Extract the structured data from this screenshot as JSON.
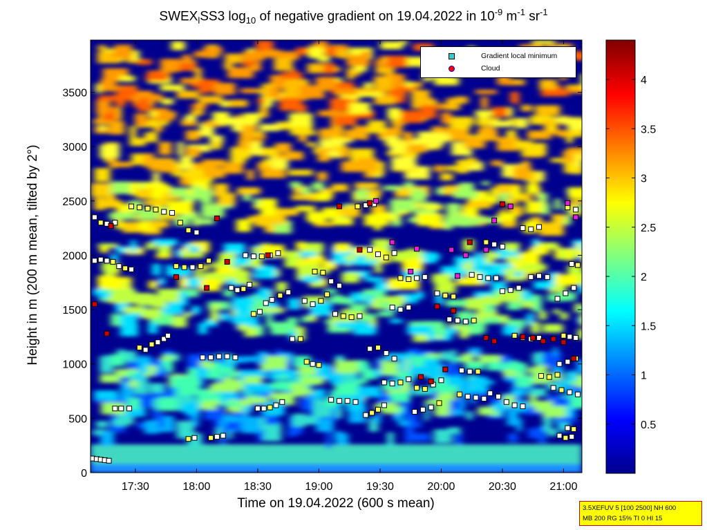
{
  "title": {
    "prefix": "SWEX",
    "sub1": "l",
    "mid": "SS3 log",
    "sub2": "10",
    "rest": " of negative gradient on 19.04.2022 in 10",
    "sup1": "-9",
    "unit1": " m",
    "sup2": "-1",
    "unit2": " sr",
    "sup3": "-1"
  },
  "xlabel": "Time on 19.04.2022 (600 s mean)",
  "ylabel": "Height in m (200 m mean, tilted by 2°)",
  "legend": {
    "items": [
      {
        "label": "Gradient local minimum",
        "color": "#33cccc"
      },
      {
        "label": "Cloud",
        "color": "#ff0000"
      }
    ]
  },
  "infobox": {
    "line1": "3.5XEFUV 5 [100 2500] NH 600",
    "line2": "MB 200 RG 15% TI 0 HI 15"
  },
  "chart_data": {
    "type": "heatmap",
    "x_tick_labels": [
      "17:30",
      "18:00",
      "18:30",
      "19:00",
      "19:30",
      "20:00",
      "20:30",
      "21:00"
    ],
    "x_tick_minutes": [
      1050,
      1080,
      1110,
      1140,
      1170,
      1200,
      1230,
      1260
    ],
    "xlim_minutes": [
      1028,
      1269
    ],
    "y_ticks": [
      0,
      500,
      1000,
      1500,
      2000,
      2500,
      3000,
      3500
    ],
    "ylim": [
      0,
      3980
    ],
    "colorbar": {
      "ticks": [
        0.5,
        1,
        1.5,
        2,
        2.5,
        3,
        3.5,
        4
      ],
      "tick_labels": [
        "0.5",
        "1",
        "1.5",
        "2",
        "2.5",
        "3",
        "3.5",
        "4"
      ],
      "range": [
        0,
        4.4
      ],
      "colormap": "jet"
    },
    "layers": [
      {
        "name": "layer-surface",
        "height": 130
      },
      {
        "name": "layer-600",
        "height": 600
      },
      {
        "name": "layer-1050",
        "height": 1050
      },
      {
        "name": "layer-1500",
        "height": 1500
      },
      {
        "name": "layer-1850",
        "height": 1850
      },
      {
        "name": "layer-2400",
        "height": 2400
      }
    ],
    "markers": [
      {
        "series": "minimum",
        "points": [
          [
            1029,
            130
          ],
          [
            1031,
            125
          ],
          [
            1033,
            120
          ],
          [
            1035,
            115
          ],
          [
            1037,
            110
          ],
          [
            1040,
            590
          ],
          [
            1043,
            590
          ],
          [
            1047,
            590
          ],
          [
            1052,
            1150
          ],
          [
            1055,
            1130
          ],
          [
            1058,
            1180
          ],
          [
            1061,
            1200
          ],
          [
            1064,
            1230
          ],
          [
            1066,
            1260
          ],
          [
            1030,
            1950
          ],
          [
            1033,
            1960
          ],
          [
            1036,
            1950
          ],
          [
            1039,
            1940
          ],
          [
            1042,
            1900
          ],
          [
            1045,
            1880
          ],
          [
            1048,
            1870
          ],
          [
            1030,
            2350
          ],
          [
            1033,
            2300
          ],
          [
            1036,
            2290
          ],
          [
            1040,
            2300
          ],
          [
            1048,
            2450
          ],
          [
            1052,
            2440
          ],
          [
            1056,
            2430
          ],
          [
            1060,
            2420
          ],
          [
            1064,
            2400
          ],
          [
            1068,
            2390
          ],
          [
            1072,
            2300
          ],
          [
            1076,
            2230
          ],
          [
            1080,
            2210
          ],
          [
            1070,
            1900
          ],
          [
            1074,
            1890
          ],
          [
            1078,
            1890
          ],
          [
            1082,
            1900
          ],
          [
            1086,
            1950
          ],
          [
            1076,
            310
          ],
          [
            1079,
            320
          ],
          [
            1087,
            320
          ],
          [
            1090,
            330
          ],
          [
            1093,
            340
          ],
          [
            1083,
            1060
          ],
          [
            1087,
            1060
          ],
          [
            1091,
            1070
          ],
          [
            1095,
            1070
          ],
          [
            1099,
            1060
          ],
          [
            1097,
            1700
          ],
          [
            1100,
            1680
          ],
          [
            1103,
            1690
          ],
          [
            1106,
            1730
          ],
          [
            1110,
            590
          ],
          [
            1113,
            590
          ],
          [
            1116,
            600
          ],
          [
            1119,
            620
          ],
          [
            1122,
            650
          ],
          [
            1108,
            1460
          ],
          [
            1111,
            1480
          ],
          [
            1114,
            1560
          ],
          [
            1117,
            1590
          ],
          [
            1121,
            1630
          ],
          [
            1125,
            1660
          ],
          [
            1104,
            2000
          ],
          [
            1108,
            1990
          ],
          [
            1112,
            1990
          ],
          [
            1116,
            2000
          ],
          [
            1120,
            2020
          ],
          [
            1127,
            1230
          ],
          [
            1131,
            1230
          ],
          [
            1134,
            1020
          ],
          [
            1137,
            1000
          ],
          [
            1140,
            990
          ],
          [
            1133,
            1580
          ],
          [
            1137,
            1550
          ],
          [
            1141,
            1580
          ],
          [
            1144,
            1640
          ],
          [
            1138,
            1850
          ],
          [
            1142,
            1840
          ],
          [
            1146,
            1760
          ],
          [
            1150,
            1720
          ],
          [
            1146,
            670
          ],
          [
            1150,
            660
          ],
          [
            1154,
            660
          ],
          [
            1158,
            650
          ],
          [
            1148,
            1460
          ],
          [
            1152,
            1440
          ],
          [
            1156,
            1430
          ],
          [
            1160,
            1440
          ],
          [
            1159,
            2450
          ],
          [
            1163,
            2460
          ],
          [
            1167,
            2470
          ],
          [
            1163,
            530
          ],
          [
            1166,
            550
          ],
          [
            1169,
            580
          ],
          [
            1172,
            620
          ],
          [
            1165,
            1140
          ],
          [
            1169,
            1150
          ],
          [
            1173,
            1100
          ],
          [
            1177,
            1050
          ],
          [
            1165,
            2050
          ],
          [
            1169,
            2010
          ],
          [
            1173,
            1980
          ],
          [
            1177,
            2020
          ],
          [
            1172,
            830
          ],
          [
            1176,
            820
          ],
          [
            1180,
            830
          ],
          [
            1184,
            860
          ],
          [
            1176,
            1520
          ],
          [
            1180,
            1500
          ],
          [
            1184,
            1520
          ],
          [
            1180,
            1790
          ],
          [
            1184,
            1780
          ],
          [
            1188,
            1790
          ],
          [
            1192,
            1800
          ],
          [
            1187,
            560
          ],
          [
            1191,
            580
          ],
          [
            1195,
            600
          ],
          [
            1199,
            640
          ],
          [
            1188,
            780
          ],
          [
            1192,
            770
          ],
          [
            1196,
            810
          ],
          [
            1200,
            850
          ],
          [
            1198,
            1650
          ],
          [
            1202,
            1630
          ],
          [
            1206,
            1620
          ],
          [
            1204,
            1410
          ],
          [
            1208,
            1400
          ],
          [
            1212,
            1390
          ],
          [
            1216,
            1400
          ],
          [
            1209,
            720
          ],
          [
            1213,
            700
          ],
          [
            1217,
            690
          ],
          [
            1221,
            680
          ],
          [
            1210,
            940
          ],
          [
            1214,
            930
          ],
          [
            1218,
            930
          ],
          [
            1215,
            1820
          ],
          [
            1219,
            1800
          ],
          [
            1223,
            1790
          ],
          [
            1227,
            1790
          ],
          [
            1222,
            2120
          ],
          [
            1226,
            2100
          ],
          [
            1230,
            2080
          ],
          [
            1224,
            730
          ],
          [
            1228,
            700
          ],
          [
            1232,
            650
          ],
          [
            1236,
            620
          ],
          [
            1240,
            610
          ],
          [
            1230,
            1670
          ],
          [
            1234,
            1680
          ],
          [
            1238,
            1700
          ],
          [
            1236,
            1260
          ],
          [
            1240,
            1240
          ],
          [
            1244,
            1230
          ],
          [
            1248,
            1240
          ],
          [
            1240,
            2250
          ],
          [
            1244,
            2240
          ],
          [
            1248,
            2260
          ],
          [
            1244,
            1800
          ],
          [
            1248,
            1810
          ],
          [
            1252,
            1800
          ],
          [
            1249,
            890
          ],
          [
            1253,
            880
          ],
          [
            1257,
            900
          ],
          [
            1260,
            1260
          ],
          [
            1263,
            1250
          ],
          [
            1266,
            1240
          ],
          [
            1255,
            780
          ],
          [
            1259,
            760
          ],
          [
            1263,
            740
          ],
          [
            1267,
            720
          ],
          [
            1258,
            1000
          ],
          [
            1262,
            1020
          ],
          [
            1266,
            1050
          ],
          [
            1257,
            1600
          ],
          [
            1261,
            1650
          ],
          [
            1265,
            1700
          ],
          [
            1258,
            340
          ],
          [
            1261,
            320
          ],
          [
            1264,
            330
          ],
          [
            1264,
            1920
          ],
          [
            1267,
            1910
          ],
          [
            1262,
            2440
          ],
          [
            1266,
            2420
          ],
          [
            1262,
            410
          ],
          [
            1265,
            400
          ]
        ]
      },
      {
        "series": "cloud",
        "points": [
          [
            1030,
            1550
          ],
          [
            1036,
            1280
          ],
          [
            1038,
            2270
          ],
          [
            1070,
            1800
          ],
          [
            1085,
            1700
          ],
          [
            1090,
            2340
          ],
          [
            1095,
            1940
          ],
          [
            1115,
            2000
          ],
          [
            1150,
            2450
          ],
          [
            1160,
            2050
          ],
          [
            1165,
            2480
          ],
          [
            1190,
            880
          ],
          [
            1195,
            840
          ],
          [
            1198,
            1530
          ],
          [
            1202,
            950
          ],
          [
            1206,
            1490
          ],
          [
            1214,
            2120
          ],
          [
            1222,
            1240
          ],
          [
            1226,
            1210
          ],
          [
            1230,
            2470
          ],
          [
            1240,
            1250
          ],
          [
            1245,
            1240
          ],
          [
            1250,
            1210
          ],
          [
            1255,
            1230
          ],
          [
            1260,
            1200
          ],
          [
            1265,
            1050
          ]
        ]
      },
      {
        "series": "minimum-magenta",
        "points": [
          [
            1168,
            2500
          ],
          [
            1185,
            1850
          ],
          [
            1205,
            2050
          ],
          [
            1212,
            2000
          ],
          [
            1222,
            2050
          ],
          [
            1226,
            2320
          ],
          [
            1234,
            2450
          ],
          [
            1262,
            2480
          ],
          [
            1266,
            2350
          ],
          [
            1208,
            1810
          ],
          [
            1176,
            2120
          ],
          [
            1188,
            2060
          ]
        ]
      }
    ]
  }
}
